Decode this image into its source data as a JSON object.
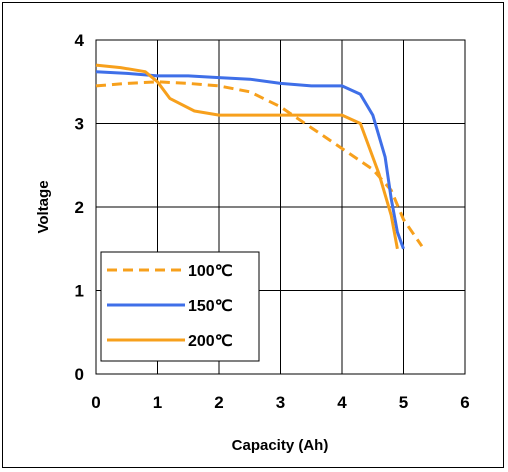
{
  "chart_data": {
    "type": "line",
    "title": "",
    "xlabel": "Capacity (Ah)",
    "ylabel": "Voltage",
    "xlim": [
      0,
      6
    ],
    "ylim": [
      0,
      4
    ],
    "xticks": [
      "0",
      "1",
      "2",
      "3",
      "4",
      "5",
      "6"
    ],
    "yticks": [
      "0",
      "1",
      "2",
      "3",
      "4"
    ],
    "grid": true,
    "legend_position": "bottom-left",
    "series": [
      {
        "name": "100℃",
        "color": "#F7A01C",
        "dash": true,
        "x": [
          0,
          0.5,
          1.0,
          1.5,
          2.0,
          2.5,
          3.0,
          3.5,
          4.0,
          4.5,
          4.8,
          5.0,
          5.3
        ],
        "y": [
          3.45,
          3.48,
          3.5,
          3.48,
          3.45,
          3.38,
          3.2,
          2.95,
          2.7,
          2.45,
          2.2,
          1.85,
          1.53
        ]
      },
      {
        "name": "150℃",
        "color": "#3F6FE8",
        "dash": false,
        "x": [
          0,
          0.5,
          1.0,
          1.5,
          2.0,
          2.5,
          3.0,
          3.5,
          4.0,
          4.3,
          4.5,
          4.7,
          4.8,
          4.9,
          5.0
        ],
        "y": [
          3.62,
          3.6,
          3.57,
          3.57,
          3.55,
          3.53,
          3.48,
          3.45,
          3.45,
          3.35,
          3.1,
          2.6,
          2.1,
          1.7,
          1.5
        ]
      },
      {
        "name": "200℃",
        "color": "#F7A01C",
        "dash": false,
        "x": [
          0,
          0.4,
          0.8,
          1.0,
          1.2,
          1.6,
          2.0,
          2.5,
          3.0,
          3.5,
          4.0,
          4.3,
          4.6,
          4.8,
          4.9
        ],
        "y": [
          3.7,
          3.67,
          3.62,
          3.5,
          3.3,
          3.15,
          3.1,
          3.1,
          3.1,
          3.1,
          3.1,
          3.0,
          2.4,
          1.9,
          1.5
        ]
      }
    ]
  }
}
